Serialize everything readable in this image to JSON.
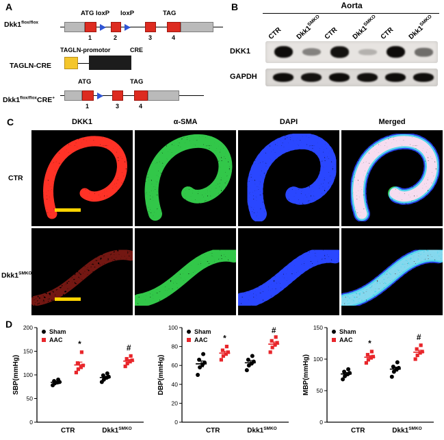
{
  "panels": {
    "a": "A",
    "b": "B",
    "c": "C",
    "d": "D"
  },
  "panelA": {
    "colors": {
      "exon": "#dd2b20",
      "loxp": "#2f55d4",
      "promoter": "#f4c62c"
    },
    "row1_label": {
      "base": "Dkk1",
      "sup": "flox/flox"
    },
    "construct1": {
      "atg": "ATG",
      "loxp1": "loxP",
      "loxp2": "loxP",
      "tag": "TAG",
      "exon1": "1",
      "exon2": "2",
      "exon3": "3",
      "exon4": "4"
    },
    "row2_label": "TAGLN-CRE",
    "construct2": {
      "promoter": "TAGLN-promotor",
      "cre": "CRE"
    },
    "row3_label": {
      "base": "Dkk1",
      "sup": "flox/flox",
      "suffix": "CRE",
      "suffix_sup": "+"
    },
    "construct3": {
      "atg": "ATG",
      "tag": "TAG",
      "exon1": "1",
      "exon3": "3",
      "exon4": "4"
    }
  },
  "panelB": {
    "title": "Aorta",
    "lanes": [
      {
        "base": "CTR",
        "sup": ""
      },
      {
        "base": "Dkk1",
        "sup": "SMKO"
      },
      {
        "base": "CTR",
        "sup": ""
      },
      {
        "base": "Dkk1",
        "sup": "SMKO"
      },
      {
        "base": "CTR",
        "sup": ""
      },
      {
        "base": "Dkk1",
        "sup": "SMKO"
      }
    ],
    "rows": [
      {
        "label": "DKK1",
        "bands": [
          0.95,
          0.4,
          0.92,
          0.18,
          0.95,
          0.5
        ]
      },
      {
        "label": "GAPDH",
        "bands": [
          0.95,
          0.92,
          0.95,
          0.93,
          0.95,
          0.94
        ]
      }
    ]
  },
  "panelC": {
    "col_headers": [
      "DKK1",
      "α-SMA",
      "DAPI",
      "Merged"
    ],
    "row_labels": [
      {
        "base": "CTR",
        "sup": ""
      },
      {
        "base": "Dkk1",
        "sup": "SMKO"
      }
    ],
    "channel_colors": {
      "red": "#ff3226",
      "green": "#33c749",
      "blue": "#2b46ff"
    },
    "scalebar_color": "#ffd400",
    "images": [
      {
        "row": 0,
        "col": 0,
        "channels": [
          {
            "color": "red",
            "intensity": 0.95
          }
        ],
        "scalebar": true
      },
      {
        "row": 0,
        "col": 1,
        "channels": [
          {
            "color": "green",
            "intensity": 0.95
          }
        ]
      },
      {
        "row": 0,
        "col": 2,
        "channels": [
          {
            "color": "blue",
            "intensity": 0.9
          }
        ]
      },
      {
        "row": 0,
        "col": 3,
        "channels": [
          {
            "color": "green",
            "intensity": 0.9
          },
          {
            "color": "red",
            "intensity": 0.85
          },
          {
            "color": "blue",
            "intensity": 0.8
          }
        ]
      },
      {
        "row": 1,
        "col": 0,
        "channels": [
          {
            "color": "red",
            "intensity": 0.35
          }
        ],
        "scalebar": true
      },
      {
        "row": 1,
        "col": 1,
        "channels": [
          {
            "color": "green",
            "intensity": 0.95
          }
        ]
      },
      {
        "row": 1,
        "col": 2,
        "channels": [
          {
            "color": "blue",
            "intensity": 0.9
          }
        ]
      },
      {
        "row": 1,
        "col": 3,
        "channels": [
          {
            "color": "green",
            "intensity": 0.9
          },
          {
            "color": "red",
            "intensity": 0.2
          },
          {
            "color": "blue",
            "intensity": 0.8
          }
        ]
      }
    ]
  },
  "chart_data": [
    {
      "type": "scatter",
      "ylabel": "SBP(mmHg)",
      "ylim": [
        0,
        200
      ],
      "yticks": [
        0,
        50,
        100,
        150,
        200
      ],
      "categories": [
        {
          "base": "CTR",
          "sup": ""
        },
        {
          "base": "Dkk1",
          "sup": "SMKO"
        }
      ],
      "legend": [
        {
          "name": "Sham",
          "color": "#000000",
          "marker": "circle"
        },
        {
          "name": "AAC",
          "color": "#e8262b",
          "marker": "square"
        }
      ],
      "groups": [
        {
          "category": 0,
          "series": "Sham",
          "color": "#000000",
          "marker": "circle",
          "values": [
            78,
            82,
            84,
            85,
            87,
            90
          ]
        },
        {
          "category": 0,
          "series": "AAC",
          "color": "#e8262b",
          "marker": "square",
          "values": [
            105,
            112,
            116,
            120,
            125,
            148
          ],
          "annotation": "*"
        },
        {
          "category": 1,
          "series": "Sham",
          "color": "#000000",
          "marker": "circle",
          "values": [
            85,
            90,
            94,
            96,
            99,
            103
          ]
        },
        {
          "category": 1,
          "series": "AAC",
          "color": "#e8262b",
          "marker": "square",
          "values": [
            118,
            124,
            128,
            131,
            134,
            140
          ],
          "annotation": "#"
        }
      ]
    },
    {
      "type": "scatter",
      "ylabel": "DBP(mmHg)",
      "ylim": [
        0,
        100
      ],
      "yticks": [
        0,
        20,
        40,
        60,
        80,
        100
      ],
      "categories": [
        {
          "base": "CTR",
          "sup": ""
        },
        {
          "base": "Dkk1",
          "sup": "SMKO"
        }
      ],
      "legend": [
        {
          "name": "Sham",
          "color": "#000000",
          "marker": "circle"
        },
        {
          "name": "AAC",
          "color": "#e8262b",
          "marker": "square"
        }
      ],
      "groups": [
        {
          "category": 0,
          "series": "Sham",
          "color": "#000000",
          "marker": "circle",
          "values": [
            50,
            58,
            61,
            63,
            66,
            72
          ]
        },
        {
          "category": 0,
          "series": "AAC",
          "color": "#e8262b",
          "marker": "square",
          "values": [
            66,
            70,
            72,
            74,
            76,
            80
          ],
          "annotation": "*"
        },
        {
          "category": 1,
          "series": "Sham",
          "color": "#000000",
          "marker": "circle",
          "values": [
            55,
            60,
            62,
            64,
            66,
            70
          ]
        },
        {
          "category": 1,
          "series": "AAC",
          "color": "#e8262b",
          "marker": "square",
          "values": [
            74,
            79,
            82,
            84,
            86,
            90
          ],
          "annotation": "#"
        }
      ]
    },
    {
      "type": "scatter",
      "ylabel": "MBP(mmHg)",
      "ylim": [
        0,
        150
      ],
      "yticks": [
        0,
        50,
        100,
        150
      ],
      "categories": [
        {
          "base": "CTR",
          "sup": ""
        },
        {
          "base": "Dkk1",
          "sup": "SMKO"
        }
      ],
      "legend": [
        {
          "name": "Sham",
          "color": "#000000",
          "marker": "circle"
        },
        {
          "name": "AAC",
          "color": "#e8262b",
          "marker": "square"
        }
      ],
      "groups": [
        {
          "category": 0,
          "series": "Sham",
          "color": "#000000",
          "marker": "circle",
          "values": [
            68,
            73,
            76,
            78,
            80,
            84
          ]
        },
        {
          "category": 0,
          "series": "AAC",
          "color": "#e8262b",
          "marker": "square",
          "values": [
            94,
            99,
            102,
            104,
            107,
            112
          ],
          "annotation": "*"
        },
        {
          "category": 1,
          "series": "Sham",
          "color": "#000000",
          "marker": "circle",
          "values": [
            72,
            80,
            84,
            86,
            88,
            95
          ]
        },
        {
          "category": 1,
          "series": "AAC",
          "color": "#e8262b",
          "marker": "square",
          "values": [
            100,
            106,
            110,
            112,
            116,
            122
          ],
          "annotation": "#"
        }
      ]
    }
  ]
}
